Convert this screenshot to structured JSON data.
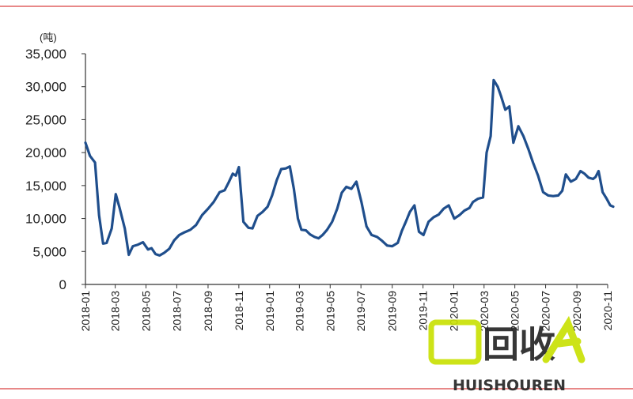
{
  "chart_data": {
    "type": "line",
    "title": "",
    "xlabel": "",
    "ylabel": "(吨)",
    "ylim": [
      0,
      35000
    ],
    "y_ticks": [
      0,
      5000,
      10000,
      15000,
      20000,
      25000,
      30000,
      35000
    ],
    "y_tick_labels": [
      "0",
      "5,000",
      "10,000",
      "15,000",
      "20,000",
      "25,000",
      "30,000",
      "35,000"
    ],
    "x_range": [
      "2018-01",
      "2020-11"
    ],
    "x_tick_labels": [
      "2018-01",
      "2018-03",
      "2018-05",
      "2018-07",
      "2018-09",
      "2018-11",
      "2019-01",
      "2019-03",
      "2019-05",
      "2019-07",
      "2019-09",
      "2019-11",
      "2020-01",
      "2020-03",
      "2020-05",
      "2020-07",
      "2020-09",
      "2020-11"
    ],
    "grid": false,
    "legend": "none",
    "line_color": "#1f4e8c",
    "series": [
      {
        "x": [
          "2018-01-01",
          "2018-01-10",
          "2018-01-20",
          "2018-01-28",
          "2018-02-05",
          "2018-02-12",
          "2018-02-22",
          "2018-03-02",
          "2018-03-10",
          "2018-03-20",
          "2018-03-28",
          "2018-04-05",
          "2018-04-14",
          "2018-04-25",
          "2018-05-05",
          "2018-05-12",
          "2018-05-20",
          "2018-05-28",
          "2018-06-06",
          "2018-06-16",
          "2018-06-26",
          "2018-07-06",
          "2018-07-16",
          "2018-07-28",
          "2018-08-08",
          "2018-08-20",
          "2018-09-01",
          "2018-09-12",
          "2018-09-24",
          "2018-10-04",
          "2018-10-12",
          "2018-10-20",
          "2018-10-26",
          "2018-11-01",
          "2018-11-10",
          "2018-11-20",
          "2018-11-28",
          "2018-12-08",
          "2018-12-18",
          "2018-12-28",
          "2019-01-06",
          "2019-01-15",
          "2019-01-24",
          "2019-02-02",
          "2019-02-10",
          "2019-02-18",
          "2019-02-26",
          "2019-03-05",
          "2019-03-14",
          "2019-03-22",
          "2019-03-31",
          "2019-04-08",
          "2019-04-16",
          "2019-04-25",
          "2019-05-05",
          "2019-05-15",
          "2019-05-24",
          "2019-06-02",
          "2019-06-12",
          "2019-06-22",
          "2019-07-02",
          "2019-07-12",
          "2019-07-22",
          "2019-08-02",
          "2019-08-12",
          "2019-08-22",
          "2019-09-01",
          "2019-09-12",
          "2019-09-20",
          "2019-09-28",
          "2019-10-06",
          "2019-10-15",
          "2019-10-24",
          "2019-11-02",
          "2019-11-12",
          "2019-11-22",
          "2019-12-02",
          "2019-12-12",
          "2019-12-22",
          "2020-01-02",
          "2020-01-12",
          "2020-01-22",
          "2020-02-01",
          "2020-02-08",
          "2020-02-18",
          "2020-02-28",
          "2020-03-06",
          "2020-03-14",
          "2020-03-20",
          "2020-03-28",
          "2020-04-04",
          "2020-04-12",
          "2020-04-20",
          "2020-04-28",
          "2020-05-08",
          "2020-05-18",
          "2020-05-28",
          "2020-06-06",
          "2020-06-16",
          "2020-06-26",
          "2020-07-06",
          "2020-07-16",
          "2020-07-26",
          "2020-08-03",
          "2020-08-10",
          "2020-08-20",
          "2020-08-30",
          "2020-09-08",
          "2020-09-16",
          "2020-09-24",
          "2020-10-03",
          "2020-10-08",
          "2020-10-14",
          "2020-10-22",
          "2020-10-30",
          "2020-11-06",
          "2020-11-12"
        ],
        "values": [
          21500,
          19500,
          18500,
          10500,
          6200,
          6300,
          8500,
          13700,
          11500,
          8500,
          4500,
          5800,
          6000,
          6400,
          5300,
          5500,
          4600,
          4400,
          4800,
          5400,
          6700,
          7500,
          7900,
          8300,
          9000,
          10500,
          11500,
          12500,
          14000,
          14300,
          15500,
          16800,
          16500,
          17800,
          9500,
          8600,
          8500,
          10400,
          11000,
          11800,
          13500,
          15800,
          17500,
          17600,
          17900,
          14500,
          10000,
          8300,
          8200,
          7600,
          7200,
          7000,
          7500,
          8300,
          9500,
          11500,
          13900,
          14800,
          14500,
          15600,
          12500,
          8800,
          7500,
          7200,
          6600,
          5900,
          5800,
          6300,
          8100,
          9500,
          11000,
          12000,
          8000,
          7500,
          9500,
          10200,
          10600,
          11500,
          12000,
          10000,
          10500,
          11200,
          11600,
          12500,
          13000,
          13200,
          20000,
          22500,
          31000,
          30000,
          28500,
          26500,
          27000,
          21500,
          24000,
          22500,
          20500,
          18500,
          16500,
          14000,
          13500,
          13400,
          13500,
          14200,
          16700,
          15600,
          16000,
          17200,
          16800,
          16200,
          16000,
          16300,
          17200,
          14000,
          13000,
          12000,
          11800
        ]
      }
    ]
  },
  "watermark": {
    "logo_text": "回收",
    "brand_text": "HUISHOUREN",
    "color": "#c8e000"
  },
  "colors": {
    "axis": "#333333",
    "frame_line": "#e06060",
    "series_line": "#1f4e8c"
  }
}
